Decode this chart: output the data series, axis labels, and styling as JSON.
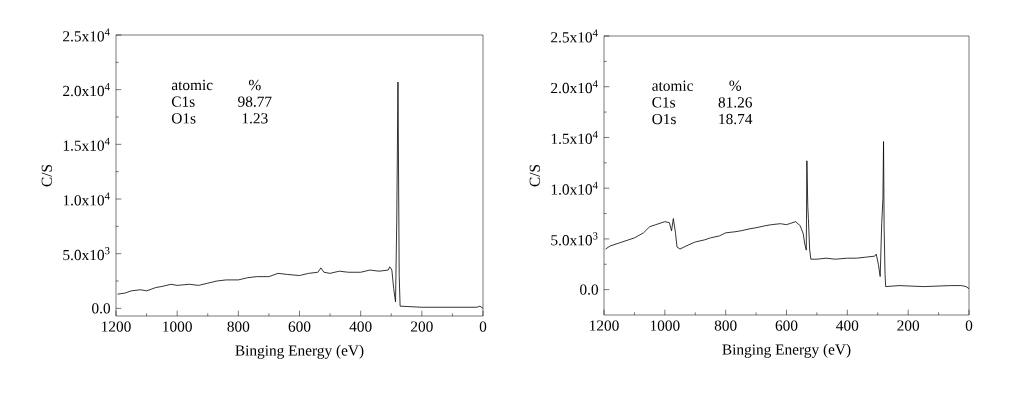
{
  "chart_data": [
    {
      "type": "line",
      "xlabel": "Binging Energy (eV)",
      "ylabel": "C/S",
      "xlim": [
        1200,
        0
      ],
      "ylim": [
        -700,
        25000
      ],
      "xticks": [
        1200,
        1000,
        800,
        600,
        400,
        200,
        0
      ],
      "yticks": [
        {
          "value": 0,
          "label": "0.0"
        },
        {
          "value": 5000,
          "label": "5.0x10$^{3}$"
        },
        {
          "value": 10000,
          "label": "1.0x10$^{4}$"
        },
        {
          "value": 15000,
          "label": "1.5x10$^{4}$"
        },
        {
          "value": 20000,
          "label": "2.0x10$^{4}$"
        },
        {
          "value": 25000,
          "label": "2.5x10$^{4}$"
        }
      ],
      "annotations": [
        "atomic",
        "%",
        "C1s",
        "98.77",
        "O1s",
        "1.23"
      ],
      "series": [
        {
          "color": "#000000",
          "x": [
            1195,
            1170,
            1150,
            1120,
            1100,
            1070,
            1050,
            1020,
            1000,
            960,
            930,
            900,
            870,
            840,
            800,
            770,
            740,
            700,
            670,
            640,
            600,
            570,
            540,
            530,
            520,
            500,
            470,
            440,
            400,
            370,
            340,
            310,
            305,
            298,
            292,
            286,
            282,
            278,
            274,
            271,
            200,
            100,
            20,
            10,
            0
          ],
          "values": [
            1300,
            1400,
            1600,
            1700,
            1600,
            1900,
            2000,
            2200,
            2100,
            2200,
            2100,
            2300,
            2500,
            2600,
            2600,
            2800,
            2900,
            2900,
            3200,
            3100,
            3000,
            3200,
            3300,
            3700,
            3300,
            3200,
            3400,
            3300,
            3300,
            3500,
            3400,
            3500,
            3800,
            3500,
            1800,
            600,
            8000,
            20700,
            3000,
            200,
            100,
            100,
            100,
            200,
            0
          ]
        }
      ]
    },
    {
      "type": "line",
      "xlabel": "Binging Energy (eV)",
      "ylabel": "C/S",
      "xlim": [
        1200,
        0
      ],
      "ylim": [
        -2500,
        25000
      ],
      "xticks": [
        1200,
        1000,
        800,
        600,
        400,
        200,
        0
      ],
      "yticks": [
        {
          "value": 0,
          "label": "0.0"
        },
        {
          "value": 5000,
          "label": "5.0x10$^{3}$"
        },
        {
          "value": 10000,
          "label": "1.0x10$^{4}$"
        },
        {
          "value": 15000,
          "label": "1.5x10$^{4}$"
        },
        {
          "value": 20000,
          "label": "2.0x10$^{4}$"
        },
        {
          "value": 25000,
          "label": "2.5x10$^{4}$"
        }
      ],
      "annotations": [
        "atomic",
        "%",
        "C1s",
        "81.26",
        "O1s",
        "18.74"
      ],
      "series": [
        {
          "color": "#000000",
          "x": [
            1195,
            1180,
            1150,
            1120,
            1100,
            1070,
            1050,
            1030,
            1000,
            985,
            978,
            972,
            965,
            960,
            950,
            930,
            900,
            870,
            850,
            820,
            800,
            770,
            750,
            720,
            700,
            670,
            650,
            620,
            600,
            570,
            555,
            545,
            540,
            535,
            533,
            530,
            528,
            524,
            520,
            500,
            470,
            440,
            400,
            370,
            340,
            310,
            305,
            298,
            292,
            287,
            283,
            281,
            279,
            276,
            274,
            230,
            150,
            60,
            25,
            10,
            0
          ],
          "values": [
            4000,
            4300,
            4600,
            4900,
            5100,
            5600,
            6200,
            6400,
            6700,
            6600,
            5800,
            7000,
            5600,
            4200,
            4000,
            4300,
            4700,
            4900,
            5100,
            5300,
            5600,
            5700,
            5800,
            6000,
            6100,
            6300,
            6400,
            6500,
            6400,
            6700,
            6300,
            5500,
            4500,
            3900,
            12700,
            8200,
            7000,
            4000,
            3000,
            3000,
            3100,
            3000,
            3100,
            3100,
            3200,
            3300,
            3500,
            2500,
            1300,
            6500,
            9000,
            14600,
            6000,
            1500,
            300,
            400,
            300,
            400,
            400,
            300,
            100
          ]
        }
      ]
    }
  ]
}
